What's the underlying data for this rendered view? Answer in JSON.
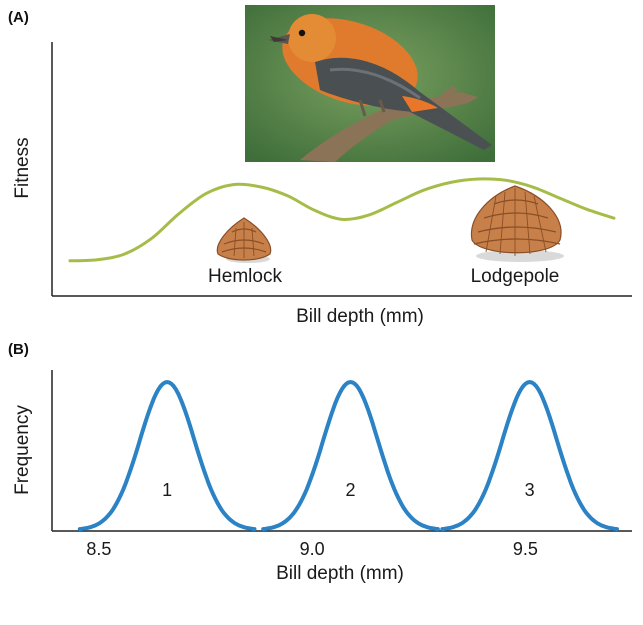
{
  "panels": {
    "a_label": "(A)",
    "b_label": "(B)"
  },
  "colors": {
    "fitness_curve": "#a5bd48",
    "frequency_curve": "#2b82c4",
    "axis": "#222222",
    "cone": "#c8804a",
    "cone_dark": "#8a4e26",
    "bird_body": "#e07a2c",
    "bird_wing": "#4a4f52",
    "photo_bg": "#5c8a4e"
  },
  "icons": {
    "photo": "red-crossbill-photo",
    "small_cone": "hemlock-cone-icon",
    "large_cone": "lodgepole-cone-icon"
  },
  "chart_data": [
    {
      "type": "line",
      "panel": "A",
      "title": "",
      "xlabel": "Bill depth (mm)",
      "ylabel": "Fitness",
      "x_ticks_shown": false,
      "y_ticks_shown": false,
      "grid": false,
      "xlim": [
        0,
        1
      ],
      "ylim": [
        0,
        1
      ],
      "series": [
        {
          "x": [
            0.0,
            0.05,
            0.1,
            0.15,
            0.2,
            0.25,
            0.3,
            0.35,
            0.4,
            0.45,
            0.5,
            0.55,
            0.6,
            0.65,
            0.7,
            0.75,
            0.8,
            0.85,
            0.9,
            0.95,
            1.0
          ],
          "values": [
            0.1,
            0.11,
            0.16,
            0.3,
            0.52,
            0.7,
            0.78,
            0.76,
            0.68,
            0.55,
            0.47,
            0.51,
            0.62,
            0.73,
            0.8,
            0.83,
            0.82,
            0.76,
            0.66,
            0.56,
            0.48
          ]
        }
      ],
      "annotations": [
        {
          "text": "Hemlock",
          "x": 0.31
        },
        {
          "text": "Lodgepole",
          "x": 0.8
        }
      ]
    },
    {
      "type": "line",
      "panel": "B",
      "title": "",
      "xlabel": "Bill depth (mm)",
      "ylabel": "Frequency",
      "x_ticks": [
        8.5,
        9.0,
        9.5
      ],
      "xlim": [
        8.39,
        9.75
      ],
      "grid": false,
      "peaks": [
        {
          "label": "1",
          "center": 8.66,
          "sigma": 0.064
        },
        {
          "label": "2",
          "center": 9.09,
          "sigma": 0.064
        },
        {
          "label": "3",
          "center": 9.51,
          "sigma": 0.064
        }
      ]
    }
  ]
}
